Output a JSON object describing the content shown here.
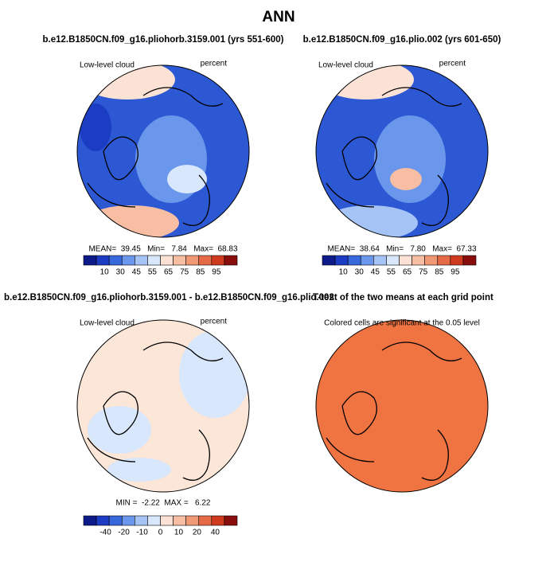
{
  "title": "ANN",
  "colors": [
    "#0c1a8a",
    "#1c3cc4",
    "#3768dc",
    "#6a96ec",
    "#a5c3f4",
    "#d8e7fb",
    "#fbe2d4",
    "#f7bea4",
    "#f19874",
    "#e76a47",
    "#cf3a1f",
    "#8a0d0d"
  ],
  "panels": [
    {
      "title": "b.e12.B1850CN.f09_g16.pliohorb.3159.001 (yrs 551-600)",
      "left_label": "Low-level cloud",
      "right_label": "percent",
      "stats": "MEAN=  39.45   Min=   7.84   Max=  68.83",
      "colorbar_labels": [
        "10",
        "30",
        "45",
        "55",
        "65",
        "75",
        "85",
        "95"
      ]
    },
    {
      "title": "b.e12.B1850CN.f09_g16.plio.002 (yrs 601-650)",
      "left_label": "Low-level cloud",
      "right_label": "percent",
      "stats": "MEAN=  38.64   Min=   7.80   Max=  67.33",
      "colorbar_labels": [
        "10",
        "30",
        "45",
        "55",
        "65",
        "75",
        "85",
        "95"
      ]
    },
    {
      "title": "b.e12.B1850CN.f09_g16.pliohorb.3159.001 - b.e12.B1850CN.f09_g16.plio.002",
      "left_label": "Low-level cloud",
      "right_label": "percent",
      "stats": "MIN =  -2.22  MAX =   6.22",
      "colorbar_labels": [
        "-40",
        "-20",
        "-10",
        "0",
        "10",
        "20",
        "40"
      ]
    },
    {
      "title": "T-test of the two means at each grid point",
      "left_label": "Colored cells are significant at the 0.05 level"
    }
  ]
}
